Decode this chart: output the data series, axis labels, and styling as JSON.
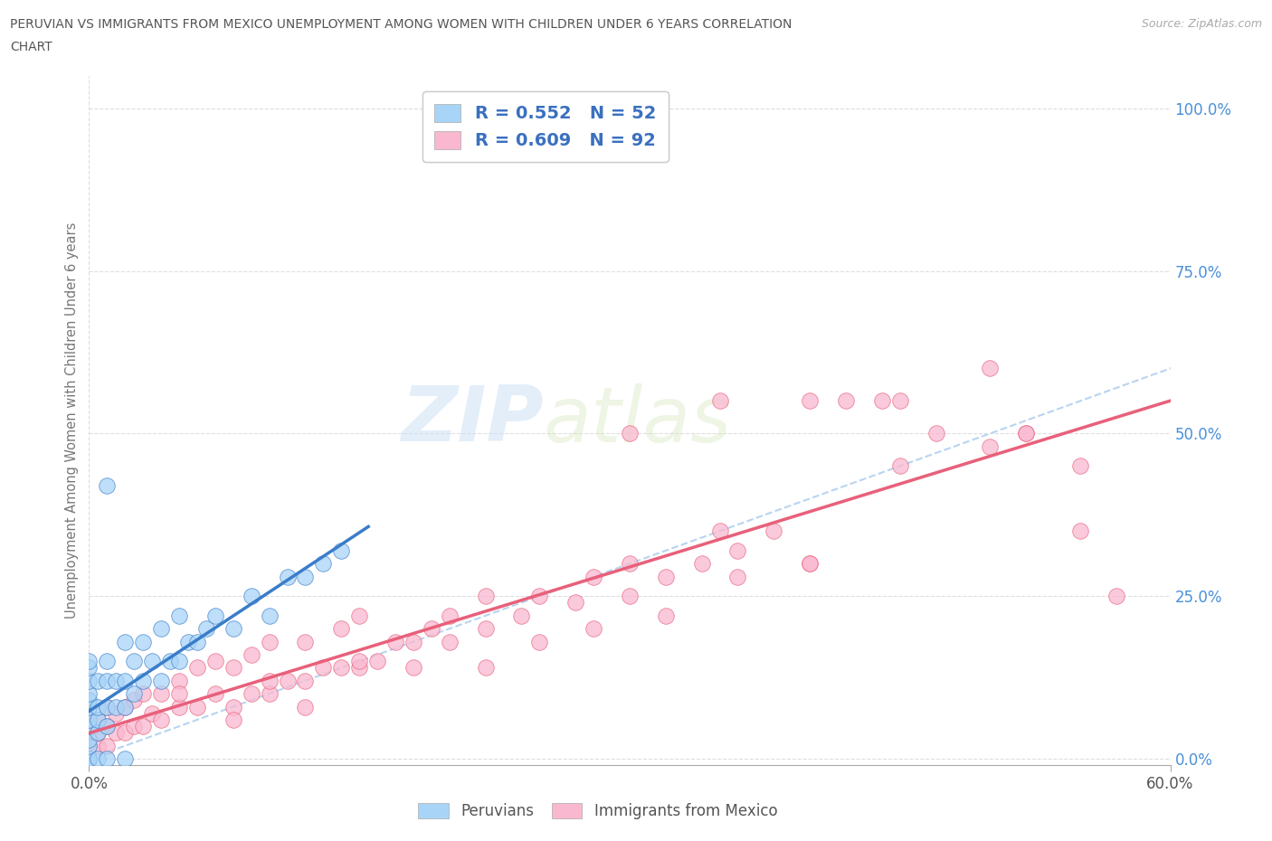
{
  "title_line1": "PERUVIAN VS IMMIGRANTS FROM MEXICO UNEMPLOYMENT AMONG WOMEN WITH CHILDREN UNDER 6 YEARS CORRELATION",
  "title_line2": "CHART",
  "source": "Source: ZipAtlas.com",
  "ylabel": "Unemployment Among Women with Children Under 6 years",
  "xmin": 0.0,
  "xmax": 0.6,
  "ymin": -0.01,
  "ymax": 1.05,
  "ytick_positions": [
    0.0,
    0.25,
    0.5,
    0.75,
    1.0
  ],
  "ytick_labels": [
    "0.0%",
    "25.0%",
    "50.0%",
    "75.0%",
    "100.0%"
  ],
  "legend_label1": "Peruvians",
  "legend_label2": "Immigrants from Mexico",
  "R1": 0.552,
  "N1": 52,
  "R2": 0.609,
  "N2": 92,
  "color1": "#A8D4F7",
  "color2": "#F9B8D0",
  "trendline1_color": "#3A7DC9",
  "trendline2_color": "#E8607A",
  "diagonal_color": "#B8D4F0",
  "background_color": "#FFFFFF",
  "watermark_zip": "ZIP",
  "watermark_atlas": "atlas",
  "peru_x": [
    0.0,
    0.0,
    0.0,
    0.0,
    0.0,
    0.0,
    0.0,
    0.0,
    0.0,
    0.0,
    0.0,
    0.0,
    0.0,
    0.0,
    0.005,
    0.005,
    0.005,
    0.005,
    0.01,
    0.01,
    0.01,
    0.01,
    0.015,
    0.015,
    0.02,
    0.02,
    0.02,
    0.025,
    0.025,
    0.03,
    0.03,
    0.035,
    0.04,
    0.04,
    0.045,
    0.05,
    0.05,
    0.055,
    0.06,
    0.065,
    0.07,
    0.08,
    0.09,
    0.1,
    0.11,
    0.12,
    0.13,
    0.14,
    0.005,
    0.01,
    0.02,
    0.01
  ],
  "peru_y": [
    0.0,
    0.0,
    0.0,
    0.0,
    0.02,
    0.03,
    0.05,
    0.06,
    0.08,
    0.09,
    0.1,
    0.12,
    0.14,
    0.15,
    0.04,
    0.06,
    0.08,
    0.12,
    0.05,
    0.08,
    0.12,
    0.15,
    0.08,
    0.12,
    0.08,
    0.12,
    0.18,
    0.1,
    0.15,
    0.12,
    0.18,
    0.15,
    0.12,
    0.2,
    0.15,
    0.15,
    0.22,
    0.18,
    0.18,
    0.2,
    0.22,
    0.2,
    0.25,
    0.22,
    0.28,
    0.28,
    0.3,
    0.32,
    0.0,
    0.0,
    0.0,
    0.42
  ],
  "mex_x": [
    0.0,
    0.0,
    0.0,
    0.0,
    0.0,
    0.0,
    0.0,
    0.0,
    0.005,
    0.005,
    0.005,
    0.01,
    0.01,
    0.01,
    0.015,
    0.015,
    0.02,
    0.02,
    0.025,
    0.025,
    0.03,
    0.03,
    0.035,
    0.04,
    0.04,
    0.05,
    0.05,
    0.06,
    0.06,
    0.07,
    0.07,
    0.08,
    0.08,
    0.09,
    0.09,
    0.1,
    0.1,
    0.11,
    0.12,
    0.12,
    0.13,
    0.14,
    0.14,
    0.15,
    0.15,
    0.16,
    0.17,
    0.18,
    0.19,
    0.2,
    0.2,
    0.22,
    0.22,
    0.24,
    0.25,
    0.27,
    0.28,
    0.3,
    0.3,
    0.32,
    0.34,
    0.35,
    0.36,
    0.38,
    0.4,
    0.42,
    0.44,
    0.45,
    0.47,
    0.5,
    0.52,
    0.55,
    0.55,
    0.57,
    0.3,
    0.35,
    0.4,
    0.45,
    0.5,
    0.52,
    0.05,
    0.1,
    0.15,
    0.08,
    0.12,
    0.18,
    0.22,
    0.25,
    0.28,
    0.32,
    0.36,
    0.4
  ],
  "mex_y": [
    0.0,
    0.0,
    0.0,
    0.0,
    0.02,
    0.04,
    0.06,
    0.08,
    0.02,
    0.04,
    0.06,
    0.02,
    0.05,
    0.08,
    0.04,
    0.07,
    0.04,
    0.08,
    0.05,
    0.09,
    0.05,
    0.1,
    0.07,
    0.06,
    0.1,
    0.08,
    0.12,
    0.08,
    0.14,
    0.1,
    0.15,
    0.08,
    0.14,
    0.1,
    0.16,
    0.1,
    0.18,
    0.12,
    0.12,
    0.18,
    0.14,
    0.14,
    0.2,
    0.14,
    0.22,
    0.15,
    0.18,
    0.18,
    0.2,
    0.18,
    0.22,
    0.2,
    0.25,
    0.22,
    0.25,
    0.24,
    0.28,
    0.25,
    0.3,
    0.28,
    0.3,
    0.35,
    0.32,
    0.35,
    0.3,
    0.55,
    0.55,
    0.45,
    0.5,
    0.48,
    0.5,
    0.35,
    0.45,
    0.25,
    0.5,
    0.55,
    0.55,
    0.55,
    0.6,
    0.5,
    0.1,
    0.12,
    0.15,
    0.06,
    0.08,
    0.14,
    0.14,
    0.18,
    0.2,
    0.22,
    0.28,
    0.3
  ]
}
